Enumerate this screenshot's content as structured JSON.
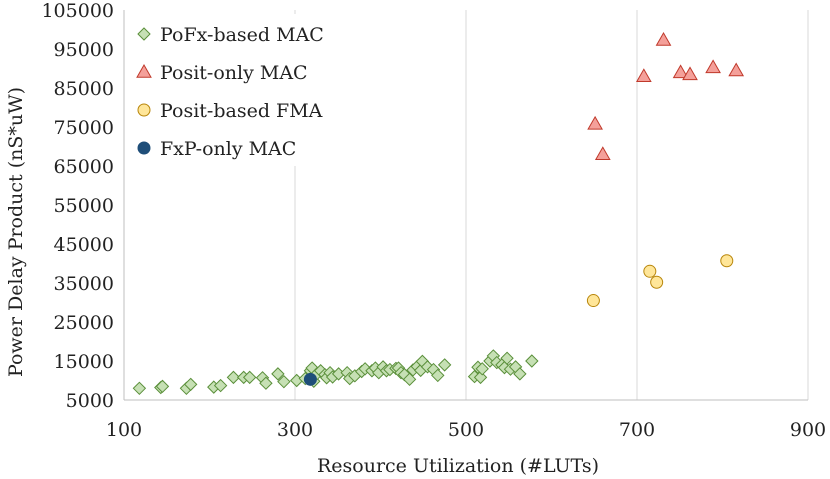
{
  "chart_data": {
    "type": "scatter",
    "title": "",
    "xlabel": "Resource Utilization (#LUTs)",
    "ylabel": "Power Delay Product (nS*uW)",
    "xlim": [
      100,
      900
    ],
    "ylim": [
      5000,
      105000
    ],
    "xticks": [
      100,
      300,
      500,
      700,
      900
    ],
    "yticks": [
      5000,
      15000,
      25000,
      35000,
      45000,
      55000,
      65000,
      75000,
      85000,
      95000,
      105000
    ],
    "xtick_labels": [
      "100",
      "300",
      "500",
      "700",
      "900"
    ],
    "ytick_labels": [
      "5000",
      "15000",
      "25000",
      "35000",
      "45000",
      "55000",
      "65000",
      "75000",
      "85000",
      "95000",
      "105000"
    ],
    "grid": "vertical",
    "legend_position": "top-left",
    "series": [
      {
        "name": "PoFx-based MAC",
        "marker": "diamond",
        "color": "#c6e0b4",
        "stroke": "#5a8f3a",
        "points": [
          [
            118,
            8000
          ],
          [
            143,
            8200
          ],
          [
            145,
            8500
          ],
          [
            173,
            8000
          ],
          [
            178,
            9000
          ],
          [
            205,
            8300
          ],
          [
            213,
            8700
          ],
          [
            228,
            10800
          ],
          [
            240,
            10800
          ],
          [
            247,
            10800
          ],
          [
            262,
            10700
          ],
          [
            266,
            9300
          ],
          [
            280,
            11700
          ],
          [
            287,
            9700
          ],
          [
            302,
            10000
          ],
          [
            312,
            10500
          ],
          [
            318,
            12500
          ],
          [
            320,
            13200
          ],
          [
            322,
            9800
          ],
          [
            326,
            11800
          ],
          [
            330,
            12500
          ],
          [
            335,
            11500
          ],
          [
            337,
            10700
          ],
          [
            341,
            12000
          ],
          [
            344,
            10900
          ],
          [
            351,
            11700
          ],
          [
            361,
            12000
          ],
          [
            364,
            10500
          ],
          [
            370,
            11200
          ],
          [
            378,
            12300
          ],
          [
            382,
            13000
          ],
          [
            390,
            12500
          ],
          [
            394,
            13200
          ],
          [
            398,
            12000
          ],
          [
            403,
            13500
          ],
          [
            407,
            12500
          ],
          [
            411,
            12800
          ],
          [
            418,
            13100
          ],
          [
            421,
            13200
          ],
          [
            424,
            12000
          ],
          [
            428,
            11500
          ],
          [
            434,
            10300
          ],
          [
            438,
            12700
          ],
          [
            443,
            13600
          ],
          [
            447,
            12600
          ],
          [
            449,
            14900
          ],
          [
            455,
            13500
          ],
          [
            462,
            12800
          ],
          [
            467,
            11300
          ],
          [
            475,
            14000
          ],
          [
            510,
            11000
          ],
          [
            514,
            13400
          ],
          [
            517,
            10800
          ],
          [
            519,
            13000
          ],
          [
            528,
            15000
          ],
          [
            532,
            16300
          ],
          [
            536,
            14600
          ],
          [
            542,
            14000
          ],
          [
            545,
            13300
          ],
          [
            548,
            15700
          ],
          [
            552,
            12900
          ],
          [
            558,
            13500
          ],
          [
            563,
            11700
          ],
          [
            577,
            15000
          ]
        ]
      },
      {
        "name": "Posit-only MAC",
        "marker": "triangle",
        "color": "#f4a09a",
        "stroke": "#c0392b",
        "points": [
          [
            651,
            75800
          ],
          [
            660,
            68000
          ],
          [
            708,
            88000
          ],
          [
            731,
            97300
          ],
          [
            751,
            89000
          ],
          [
            762,
            88500
          ],
          [
            789,
            90300
          ],
          [
            816,
            89500
          ]
        ]
      },
      {
        "name": "Posit-based FMA",
        "marker": "circle",
        "color": "#ffe699",
        "stroke": "#b8860b",
        "points": [
          [
            649,
            30500
          ],
          [
            715,
            38000
          ],
          [
            723,
            35200
          ],
          [
            805,
            40700
          ]
        ]
      },
      {
        "name": "FxP-only MAC",
        "marker": "circle",
        "color": "#1f4e79",
        "stroke": "#1f4e79",
        "points": [
          [
            318,
            10300
          ]
        ]
      }
    ]
  }
}
